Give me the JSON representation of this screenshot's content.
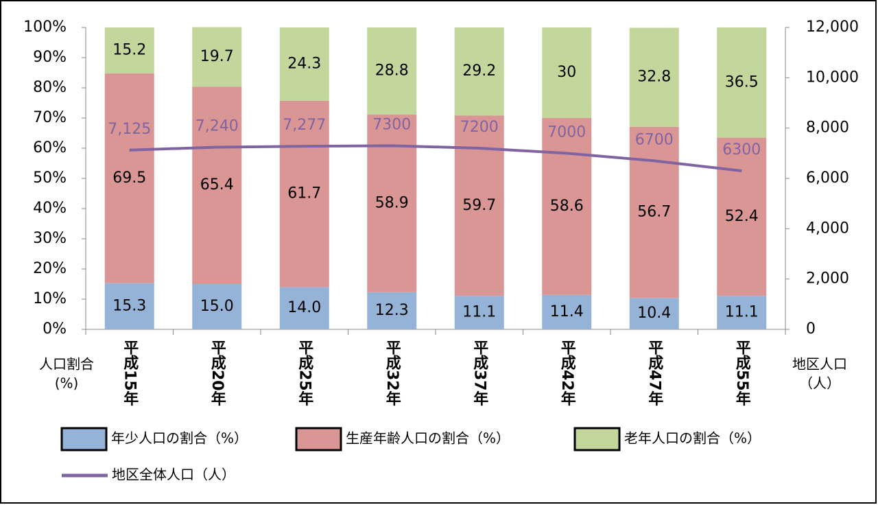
{
  "chart_data": {
    "type": "stacked-bar-line",
    "categories": [
      "平成15年",
      "平成20年",
      "平成25年",
      "平成32年",
      "平成37年",
      "平成42年",
      "平成47年",
      "平成55年"
    ],
    "series": [
      {
        "name": "年少人口の割合（%）",
        "color": "#95b3d7",
        "values": [
          15.3,
          15.0,
          14.0,
          12.3,
          11.1,
          11.4,
          10.4,
          11.1
        ],
        "value_labels": [
          "15.3",
          "15.0",
          "14.0",
          "12.3",
          "11.1",
          "11.4",
          "10.4",
          "11.1"
        ]
      },
      {
        "name": "生産年齢人口の割合（%）",
        "color": "#d99694",
        "values": [
          69.5,
          65.4,
          61.7,
          58.9,
          59.7,
          58.6,
          56.7,
          52.4
        ]
      },
      {
        "name": "老年人口の割合（%）",
        "color": "#c3d69b",
        "values": [
          15.2,
          19.7,
          24.3,
          28.8,
          29.2,
          30.0,
          32.8,
          36.5
        ]
      },
      {
        "name": "地区全体人口（人）",
        "color": "#8064a2",
        "axis": "y2",
        "values": [
          7125,
          7240,
          7277,
          7300,
          7200,
          7000,
          6700,
          6300
        ],
        "value_labels": [
          "7,125",
          "7,240",
          "7,277",
          "7300",
          "7200",
          "7000",
          "6700",
          "6300"
        ]
      }
    ],
    "ylabel": [
      "人口割合",
      "(%)"
    ],
    "y2label": [
      "地区人口",
      "（人）"
    ],
    "ylim": [
      0,
      100
    ],
    "yticks": [
      {
        "value": 0,
        "label": "0%"
      },
      {
        "value": 10,
        "label": "10%"
      },
      {
        "value": 20,
        "label": "20%"
      },
      {
        "value": 30,
        "label": "30%"
      },
      {
        "value": 40,
        "label": "40%"
      },
      {
        "value": 50,
        "label": "50%"
      },
      {
        "value": 60,
        "label": "60%"
      },
      {
        "value": 70,
        "label": "70%"
      },
      {
        "value": 80,
        "label": "80%"
      },
      {
        "value": 90,
        "label": "90%"
      },
      {
        "value": 100,
        "label": "100%"
      }
    ],
    "y2lim": [
      0,
      12000
    ],
    "y2ticks": [
      0,
      {
        "value": 2000,
        "label": "2,000"
      },
      {
        "value": 4000,
        "label": "4,000"
      },
      {
        "value": 6000,
        "label": "6,000"
      },
      {
        "value": 8000,
        "label": "8,000"
      },
      {
        "value": 10000,
        "label": "10,000"
      },
      {
        "value": 12000,
        "label": "12,000"
      }
    ],
    "grid": false
  }
}
